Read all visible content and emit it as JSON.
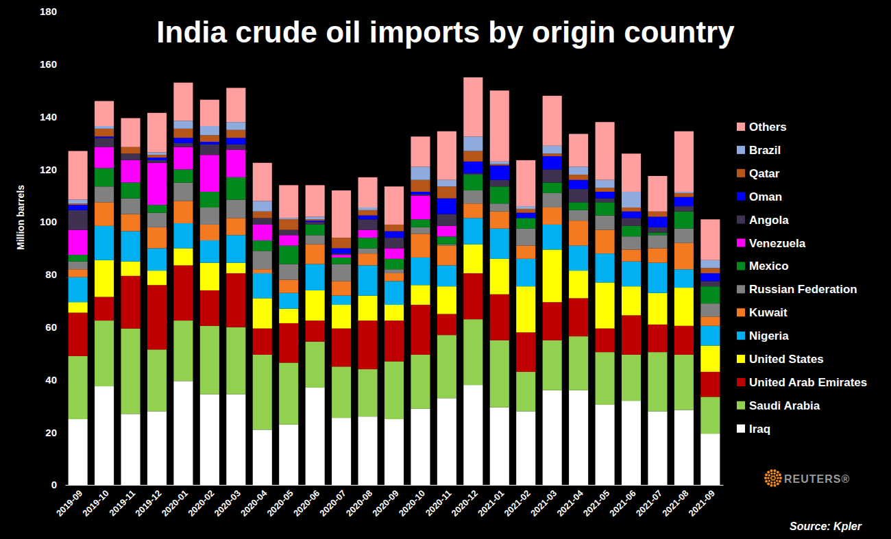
{
  "chart_data": {
    "type": "bar",
    "stacked": true,
    "grid": false,
    "legend": "right",
    "title": "India crude oil imports by origin country",
    "y_label": "Million barrels",
    "annotations": [
      "Source: Kpler",
      "REUTERS®"
    ],
    "categories": [
      "2019-09",
      "2019-10",
      "2019-11",
      "2019-12",
      "2020-01",
      "2020-02",
      "2020-03",
      "2020-04",
      "2020-05",
      "2020-06",
      "2020-07",
      "2020-08",
      "2020-09",
      "2020-10",
      "2020-11",
      "2020-12",
      "2021-01",
      "2021-02",
      "2021-03",
      "2021-04",
      "2021-05",
      "2021-06",
      "2021-07",
      "2021-08",
      "2021-09"
    ],
    "ylim": [
      0,
      180
    ],
    "yticks": [
      0,
      20,
      40,
      60,
      80,
      100,
      120,
      140,
      160,
      180
    ],
    "series": [
      {
        "name": "Iraq",
        "color": "#ffffff",
        "values": [
          25,
          37.5,
          27,
          28,
          39.5,
          34.5,
          34.5,
          21,
          23,
          37,
          25.5,
          26,
          25,
          29,
          33,
          38,
          29.5,
          28,
          36,
          36,
          30.5,
          32,
          28,
          28.5,
          19.5
        ]
      },
      {
        "name": "Saudi Arabia",
        "color": "#92d050",
        "values": [
          24,
          25,
          32.5,
          23.5,
          23,
          26,
          25.5,
          28.5,
          23.5,
          17.5,
          19.5,
          18,
          22,
          20.5,
          24,
          25,
          25.5,
          15,
          19,
          20.5,
          20,
          17.5,
          22.5,
          21,
          14
        ]
      },
      {
        "name": "United Arab Emirates",
        "color": "#c00000",
        "values": [
          16.5,
          9,
          20,
          24.5,
          21,
          13.5,
          20.5,
          10,
          15,
          8,
          14.5,
          18.5,
          15.5,
          19,
          8,
          17.5,
          17.5,
          15,
          14.5,
          14.5,
          9,
          15,
          10.5,
          11,
          9.5
        ]
      },
      {
        "name": "United States",
        "color": "#ffff00",
        "values": [
          4,
          14,
          5.5,
          5.5,
          6.5,
          10.5,
          4,
          11.5,
          5.5,
          11.5,
          9,
          9.5,
          6,
          7.5,
          10.5,
          11,
          13.5,
          17.5,
          20,
          10.5,
          17.5,
          11,
          12,
          14.5,
          10
        ]
      },
      {
        "name": "Nigeria",
        "color": "#00b0f0",
        "values": [
          9.5,
          13,
          11.5,
          8.5,
          9.5,
          8.5,
          10.5,
          9.5,
          6,
          10,
          3.5,
          11.5,
          9,
          10.5,
          8,
          10,
          11.5,
          10.5,
          9.5,
          9.5,
          11,
          9.5,
          11.5,
          7,
          7.5
        ]
      },
      {
        "name": "Kuwait",
        "color": "#f47920",
        "values": [
          3,
          9,
          6.5,
          8,
          8.5,
          6,
          6.5,
          1.5,
          5,
          7.5,
          5.5,
          4.5,
          3,
          9,
          7.5,
          5.5,
          6.5,
          5,
          6.5,
          9.5,
          9,
          4.5,
          5.5,
          10,
          3.5
        ]
      },
      {
        "name": "Russian Federation",
        "color": "#808080",
        "values": [
          3,
          6,
          6,
          5.5,
          7,
          6.5,
          7,
          7,
          6,
          3.5,
          6.5,
          2,
          1.5,
          2.5,
          0.5,
          5,
          3,
          6.5,
          5.5,
          4,
          5.5,
          5,
          5,
          5.5,
          5
        ]
      },
      {
        "name": "Mexico",
        "color": "#008a1e",
        "values": [
          2.5,
          7,
          6,
          3,
          5,
          6,
          8.5,
          4,
          7,
          4,
          2.5,
          4,
          4,
          3,
          3,
          6,
          6.5,
          4,
          4,
          3,
          5,
          4,
          1,
          6.5,
          6.5
        ]
      },
      {
        "name": "Venezuela",
        "color": "#ff00ff",
        "values": [
          9.5,
          8,
          8.5,
          16,
          8.5,
          14,
          10.5,
          6,
          4,
          0,
          1,
          3,
          4,
          9,
          4,
          0,
          0,
          0,
          0,
          0,
          0,
          0,
          0,
          0,
          0
        ]
      },
      {
        "name": "Angola",
        "color": "#403151",
        "values": [
          7.5,
          3.5,
          2.5,
          1,
          1.5,
          4,
          2,
          2.5,
          2,
          1,
          0.5,
          4,
          4,
          0.5,
          4.5,
          0.5,
          2.5,
          0,
          5,
          5,
          1.5,
          3,
          2,
          2,
          2
        ]
      },
      {
        "name": "Oman",
        "color": "#0000ff",
        "values": [
          2,
          0.5,
          0,
          1,
          2,
          1,
          2.5,
          0,
          0,
          0.5,
          2,
          1.5,
          2.5,
          1,
          6,
          4.5,
          5.5,
          2,
          5,
          3.5,
          2.5,
          2.5,
          4,
          3.5,
          3
        ]
      },
      {
        "name": "Qatar",
        "color": "#b8561a",
        "values": [
          0.5,
          3,
          2.5,
          1,
          3.5,
          2.5,
          3,
          2.5,
          4,
          0.5,
          4,
          2,
          2.5,
          4.5,
          4.5,
          4,
          0.5,
          1.5,
          1,
          2,
          1.5,
          1.5,
          2,
          1.5,
          2
        ]
      },
      {
        "name": "Brazil",
        "color": "#8faadc",
        "values": [
          1.5,
          1,
          0,
          1,
          3,
          3.5,
          3,
          4,
          0.5,
          1,
          0,
          1,
          0,
          5,
          2.5,
          5.5,
          1,
          1,
          3,
          3,
          3,
          6,
          0,
          0.5,
          3
        ]
      },
      {
        "name": "Others",
        "color": "#ff9f9f",
        "values": [
          18.5,
          9.5,
          11,
          15,
          14.5,
          10,
          13,
          14.5,
          12.5,
          12,
          18,
          11.5,
          14.5,
          11.5,
          18.5,
          22.5,
          27,
          17.5,
          19,
          12.5,
          22,
          14.5,
          13.5,
          23,
          15.5
        ]
      }
    ]
  }
}
